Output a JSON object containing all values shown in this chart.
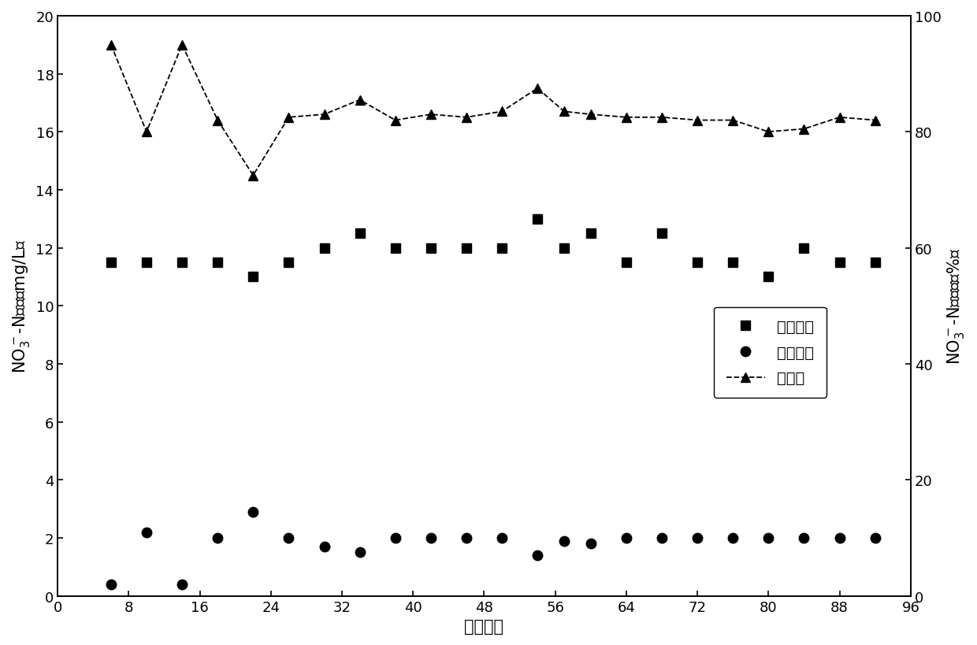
{
  "x_inlet": [
    6,
    10,
    14,
    18,
    22,
    26,
    30,
    34,
    38,
    42,
    46,
    50,
    54,
    57,
    60,
    64,
    68,
    72,
    76,
    80,
    84,
    88,
    92
  ],
  "inlet_conc": [
    11.5,
    11.5,
    11.5,
    11.5,
    11.0,
    11.5,
    12.0,
    12.5,
    12.0,
    12.0,
    12.0,
    12.0,
    13.0,
    12.0,
    12.5,
    11.5,
    12.5,
    11.5,
    11.5,
    11.0,
    12.0,
    11.5,
    11.5
  ],
  "x_outlet": [
    6,
    10,
    14,
    18,
    22,
    26,
    30,
    34,
    38,
    42,
    46,
    50,
    54,
    57,
    60,
    64,
    68,
    72,
    76,
    80,
    84,
    88,
    92
  ],
  "outlet_conc": [
    0.4,
    2.2,
    0.4,
    2.0,
    2.9,
    2.0,
    1.7,
    1.5,
    2.0,
    2.0,
    2.0,
    2.0,
    1.4,
    1.9,
    1.8,
    2.0,
    2.0,
    2.0,
    2.0,
    2.0,
    2.0,
    2.0,
    2.0
  ],
  "x_removal": [
    6,
    10,
    14,
    18,
    22,
    26,
    30,
    34,
    38,
    42,
    46,
    50,
    54,
    57,
    60,
    64,
    68,
    72,
    76,
    80,
    84,
    88,
    92
  ],
  "removal_rate": [
    95.0,
    80.0,
    95.0,
    82.0,
    72.5,
    82.5,
    83.0,
    85.5,
    82.0,
    83.0,
    82.5,
    83.5,
    87.5,
    83.5,
    83.0,
    82.5,
    82.5,
    82.0,
    82.0,
    80.0,
    80.5,
    82.5,
    82.0
  ],
  "xlim": [
    0,
    96
  ],
  "ylim_left": [
    0,
    20
  ],
  "ylim_right": [
    0,
    100
  ],
  "xticks": [
    0,
    8,
    16,
    24,
    32,
    40,
    48,
    56,
    64,
    72,
    80,
    88,
    96
  ],
  "yticks_left": [
    0,
    2,
    4,
    6,
    8,
    10,
    12,
    14,
    16,
    18,
    20
  ],
  "yticks_right": [
    0,
    20,
    40,
    60,
    80,
    100
  ],
  "xlabel": "运行天数",
  "ylabel_left": "NO$_3^-$-N浓度（mg/L）",
  "ylabel_right": "NO$_3^-$-N去除率（%）",
  "legend_label_inlet": "进水浓度",
  "legend_label_outlet": "出水浓度",
  "legend_label_removal": "去除率",
  "fontsize_labels": 15,
  "fontsize_ticks": 13,
  "fontsize_legend": 14
}
